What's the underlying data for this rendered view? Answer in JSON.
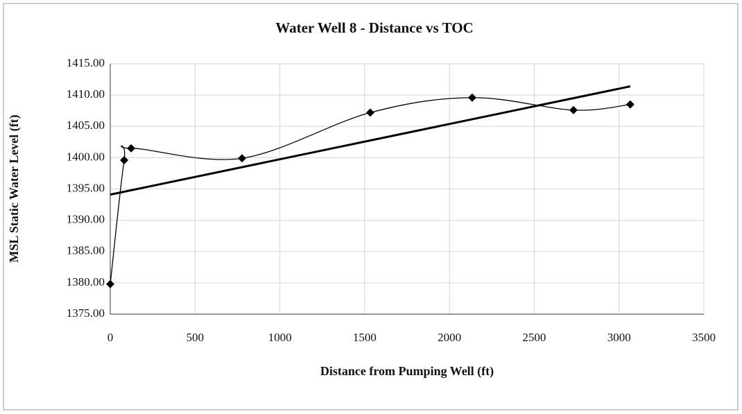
{
  "chart_data": {
    "type": "scatter",
    "title": "Water Well 8 - Distance vs TOC",
    "x_label": "Distance from Pumping Well (ft)",
    "y_label": "MSL Static Water Level (ft)",
    "series": [
      {
        "color": "#000000",
        "smooth": true,
        "marker": "diamond",
        "x": [
          0,
          82,
          123,
          777,
          1533,
          2134,
          2731,
          3066
        ],
        "values": [
          1379.8,
          1399.6,
          1401.5,
          1399.9,
          1407.2,
          1409.6,
          1407.6,
          1408.5
        ]
      },
      {
        "color": "#000000",
        "smooth": false,
        "marker": "none",
        "x": [
          0,
          3066
        ],
        "values": [
          1394.1,
          1411.4
        ]
      }
    ],
    "xlim": [
      0,
      3500
    ],
    "xticks": [
      0,
      500,
      1000,
      1500,
      2000,
      2500,
      3000,
      3500
    ],
    "ylim": [
      1375,
      1415
    ],
    "yticks": [
      {
        "value": 1375,
        "label": "1375.00"
      },
      {
        "value": 1380,
        "label": "1380.00"
      },
      {
        "value": 1385,
        "label": "1385.00"
      },
      {
        "value": 1390,
        "label": "1390.00"
      },
      {
        "value": 1395,
        "label": "1395.00"
      },
      {
        "value": 1400,
        "label": "1400.00"
      },
      {
        "value": 1405,
        "label": "1405.00"
      },
      {
        "value": 1410,
        "label": "1410.00"
      },
      {
        "value": 1415,
        "label": "1415.00"
      }
    ],
    "grid": true
  }
}
